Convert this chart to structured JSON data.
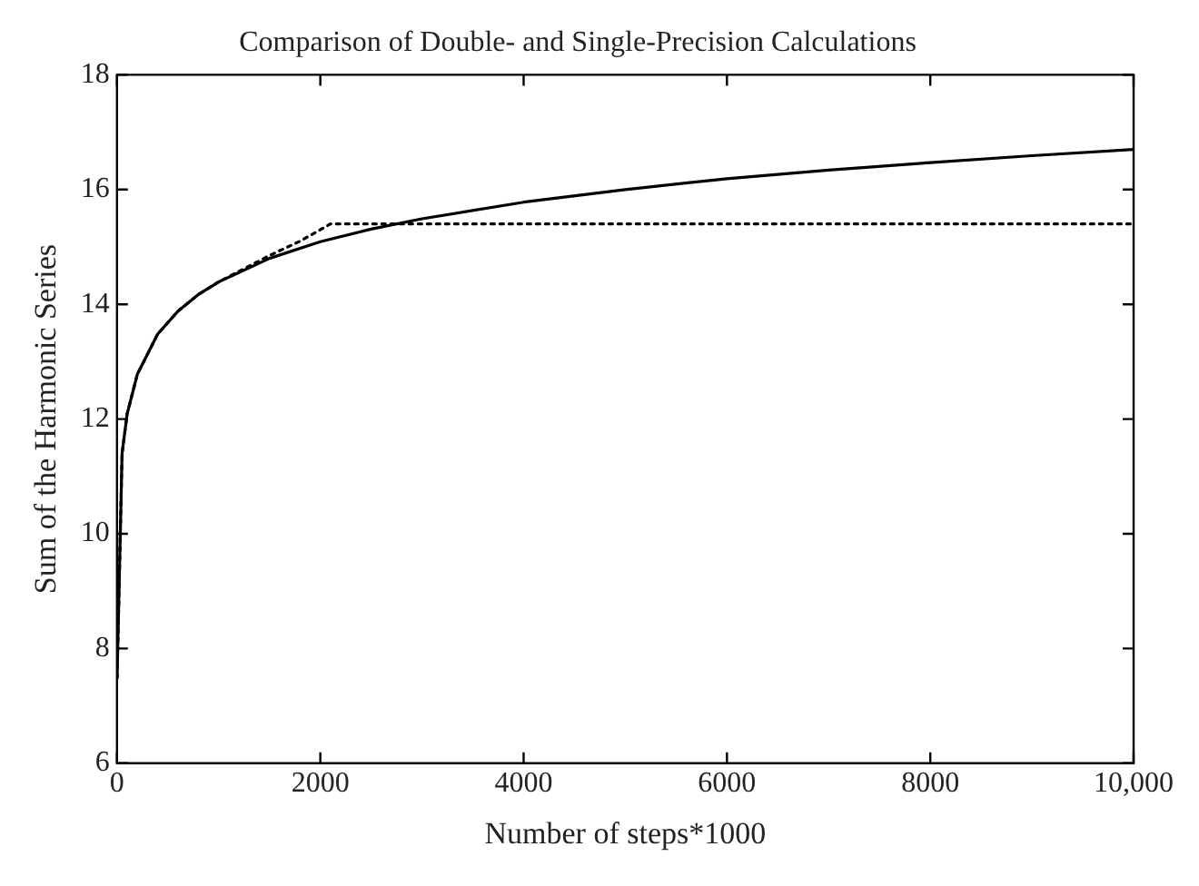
{
  "chart_data": {
    "type": "line",
    "title": "Comparison of Double- and Single-Precision Calculations",
    "xlabel": "Number of steps*1000",
    "ylabel": "Sum of the Harmonic Series",
    "xlim": [
      0,
      10000
    ],
    "ylim": [
      6,
      18
    ],
    "xticks": [
      0,
      2000,
      4000,
      6000,
      8000,
      {
        "value": 10000,
        "label": "10,000"
      }
    ],
    "yticks": [
      6,
      8,
      10,
      12,
      14,
      16,
      18
    ],
    "grid": false,
    "legend": false,
    "marker": "none",
    "series": [
      {
        "color": "#000000",
        "line_style": "solid",
        "x": [
          1,
          50,
          100,
          200,
          400,
          600,
          800,
          1000,
          1500,
          2000,
          2500,
          3000,
          4000,
          5000,
          6000,
          7000,
          8000,
          9000,
          10000
        ],
        "values": [
          7.49,
          11.4,
          12.09,
          12.78,
          13.48,
          13.88,
          14.17,
          14.39,
          14.8,
          15.09,
          15.31,
          15.49,
          15.78,
          16.0,
          16.19,
          16.34,
          16.47,
          16.59,
          16.7
        ]
      },
      {
        "color": "#000000",
        "line_style": "dotted",
        "x": [
          1,
          50,
          100,
          200,
          400,
          600,
          800,
          1000,
          1500,
          1800,
          2100,
          3000,
          4000,
          5000,
          6000,
          7000,
          8000,
          9000,
          10000
        ],
        "values": [
          7.49,
          11.4,
          12.09,
          12.78,
          13.48,
          13.88,
          14.17,
          14.39,
          14.85,
          15.1,
          15.4,
          15.4,
          15.4,
          15.4,
          15.4,
          15.4,
          15.4,
          15.4,
          15.4
        ]
      }
    ]
  }
}
